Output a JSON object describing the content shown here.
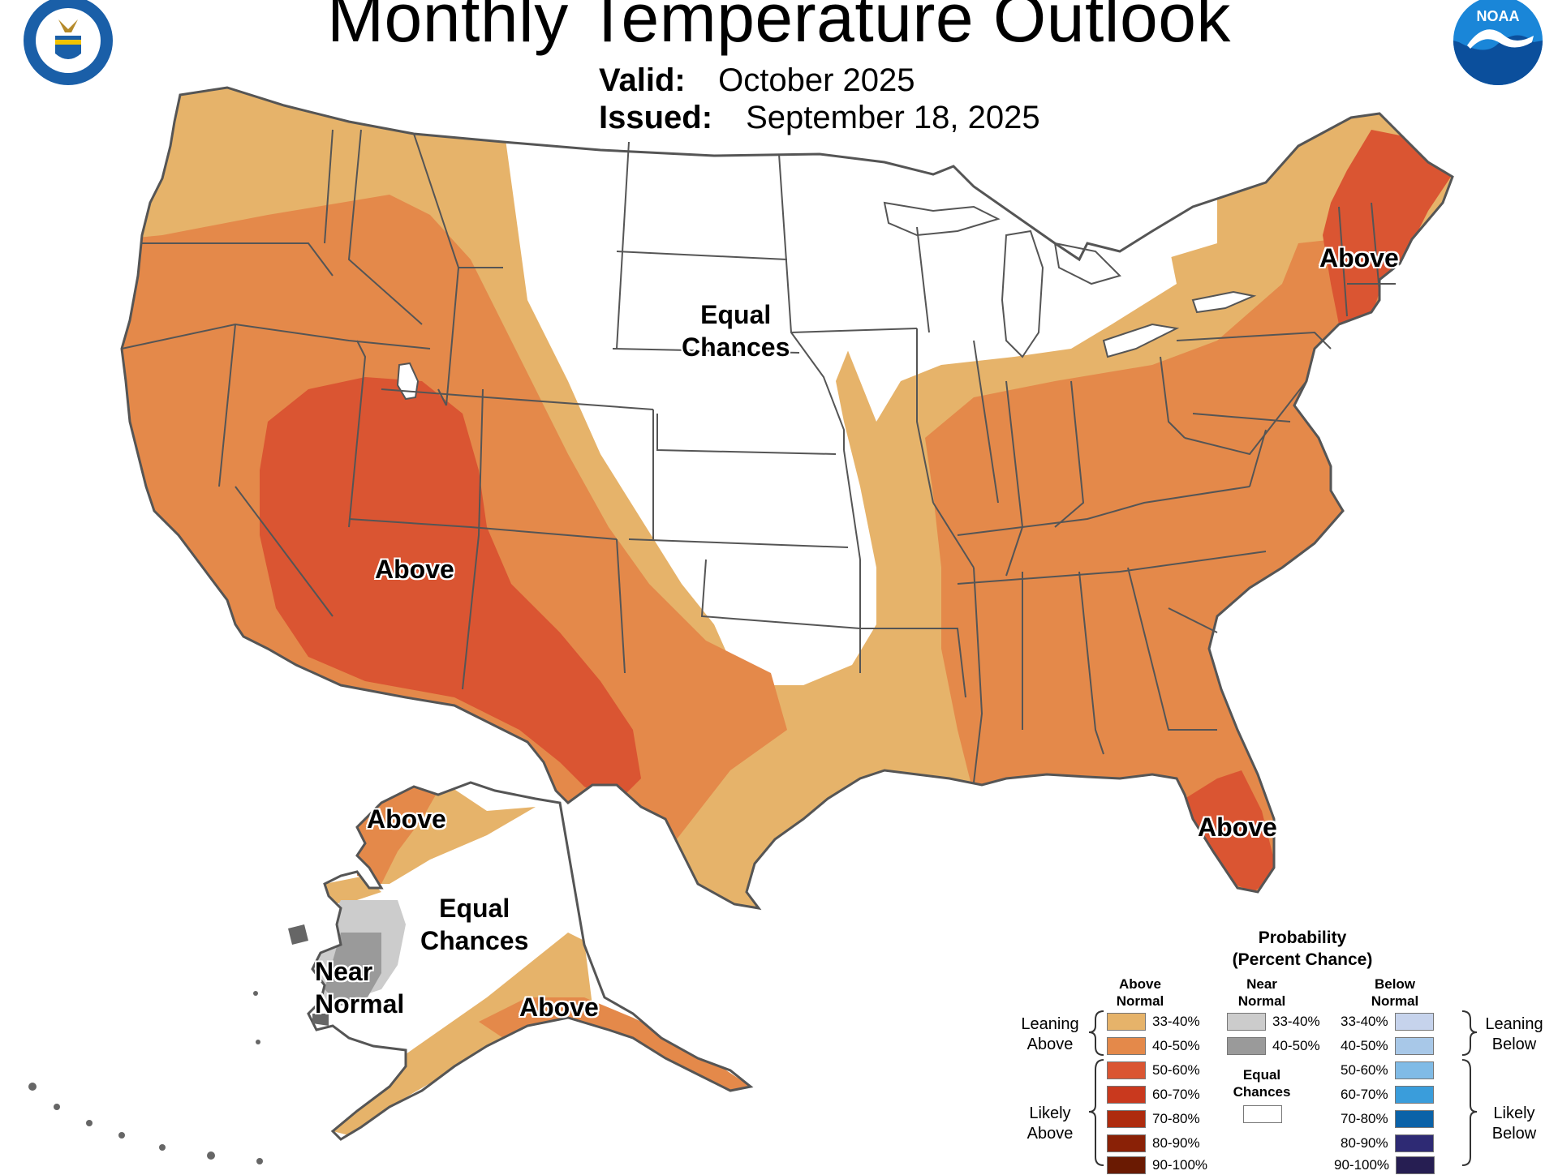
{
  "header": {
    "title": "Monthly Temperature Outlook",
    "valid_key": "Valid:",
    "valid_value": "October 2025",
    "issued_key": "Issued:",
    "issued_value": "September 18, 2025"
  },
  "logos": {
    "left": "department-of-commerce-seal",
    "right_text": "NOAA"
  },
  "map_labels": {
    "conus_equal": [
      "Equal",
      "Chances"
    ],
    "southwest_above": "Above",
    "northeast_above": "Above",
    "florida_above": "Above",
    "alaska_north_above": "Above",
    "alaska_equal": [
      "Equal",
      "Chances"
    ],
    "alaska_near": [
      "Near",
      "Normal"
    ],
    "alaska_south_above": "Above"
  },
  "colors": {
    "above_33_40": "#E6B36A",
    "above_40_50": "#E4894A",
    "above_50_60": "#DA5532",
    "above_60_70": "#C9391E",
    "above_70_80": "#AE2B0E",
    "above_80_90": "#8A2106",
    "above_90_100": "#6A1A02",
    "near_33_40": "#CCCCCC",
    "near_40_50": "#9A9A9A",
    "below_33_40": "#C6D3EC",
    "below_40_50": "#A8C8E8",
    "below_50_60": "#80BBE6",
    "below_60_70": "#3A9DDB",
    "below_70_80": "#0A62A8",
    "below_80_90": "#2E2A74",
    "below_90_100": "#261E52",
    "equal_chances": "#FFFFFF",
    "borders": "#555555"
  },
  "legend": {
    "title_line1": "Probability",
    "title_line2": "(Percent Chance)",
    "above_head": [
      "Above",
      "Normal"
    ],
    "near_head": [
      "Near",
      "Normal"
    ],
    "below_head": [
      "Below",
      "Normal"
    ],
    "above_rows": [
      "33-40%",
      "40-50%",
      "50-60%",
      "60-70%",
      "70-80%",
      "80-90%",
      "90-100%"
    ],
    "near_rows": [
      "33-40%",
      "40-50%"
    ],
    "below_rows": [
      "33-40%",
      "40-50%",
      "50-60%",
      "60-70%",
      "70-80%",
      "80-90%",
      "90-100%"
    ],
    "equal_head": [
      "Equal",
      "Chances"
    ],
    "leaning_above": [
      "Leaning",
      "Above"
    ],
    "likely_above": [
      "Likely",
      "Above"
    ],
    "leaning_below": [
      "Leaning",
      "Below"
    ],
    "likely_below": [
      "Likely",
      "Below"
    ]
  }
}
